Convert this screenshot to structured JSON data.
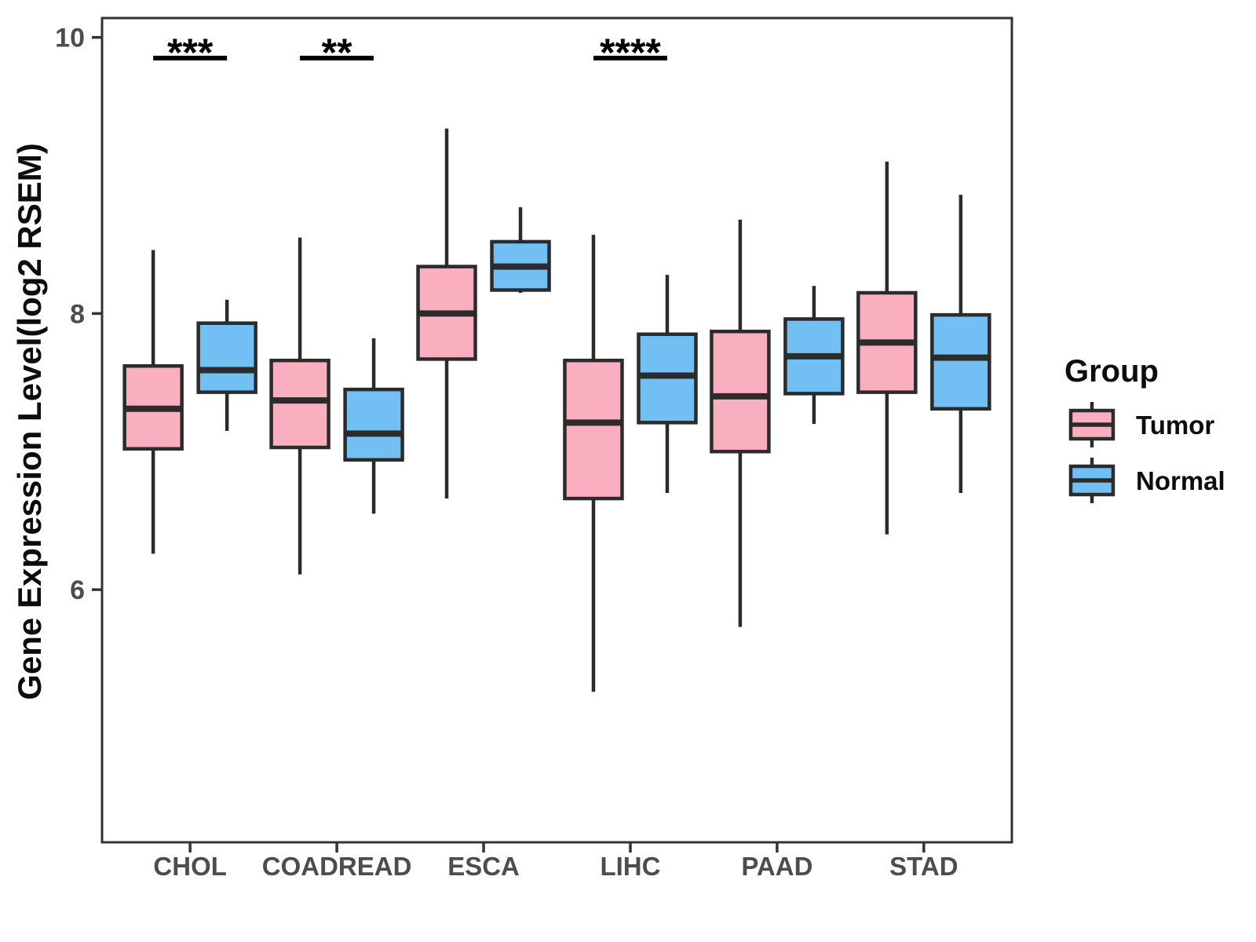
{
  "chart_data": {
    "type": "boxplot",
    "title": "",
    "xlabel": "",
    "ylabel": "Gene Expression Level(log2 RSEM)",
    "yticks": [
      6,
      8,
      10
    ],
    "ylim": [
      4.17,
      10.14
    ],
    "grid": false,
    "legend_title": "Group",
    "legend_position": "right",
    "categories": [
      "CHOL",
      "COADREAD",
      "ESCA",
      "LIHC",
      "PAAD",
      "STAD"
    ],
    "series": [
      {
        "name": "Tumor",
        "color": "#FAAFC0",
        "boxes": [
          {
            "category": "CHOL",
            "whisker_low": 6.26,
            "q1": 7.02,
            "median": 7.31,
            "q3": 7.62,
            "whisker_high": 8.46
          },
          {
            "category": "COADREAD",
            "whisker_low": 6.11,
            "q1": 7.03,
            "median": 7.37,
            "q3": 7.66,
            "whisker_high": 8.55
          },
          {
            "category": "ESCA",
            "whisker_low": 6.66,
            "q1": 7.67,
            "median": 8.0,
            "q3": 8.34,
            "whisker_high": 9.34
          },
          {
            "category": "LIHC",
            "whisker_low": 5.26,
            "q1": 6.66,
            "median": 7.21,
            "q3": 7.66,
            "whisker_high": 8.57
          },
          {
            "category": "PAAD",
            "whisker_low": 5.73,
            "q1": 7.0,
            "median": 7.4,
            "q3": 7.87,
            "whisker_high": 8.68
          },
          {
            "category": "STAD",
            "whisker_low": 6.4,
            "q1": 7.43,
            "median": 7.79,
            "q3": 8.15,
            "whisker_high": 9.1
          }
        ]
      },
      {
        "name": "Normal",
        "color": "#72BFF4",
        "boxes": [
          {
            "category": "CHOL",
            "whisker_low": 7.15,
            "q1": 7.43,
            "median": 7.59,
            "q3": 7.93,
            "whisker_high": 8.1
          },
          {
            "category": "COADREAD",
            "whisker_low": 6.55,
            "q1": 6.94,
            "median": 7.13,
            "q3": 7.45,
            "whisker_high": 7.82
          },
          {
            "category": "ESCA",
            "whisker_low": 8.15,
            "q1": 8.17,
            "median": 8.34,
            "q3": 8.52,
            "whisker_high": 8.77
          },
          {
            "category": "LIHC",
            "whisker_low": 6.7,
            "q1": 7.21,
            "median": 7.55,
            "q3": 7.85,
            "whisker_high": 8.28
          },
          {
            "category": "PAAD",
            "whisker_low": 7.2,
            "q1": 7.42,
            "median": 7.69,
            "q3": 7.96,
            "whisker_high": 8.2
          },
          {
            "category": "STAD",
            "whisker_low": 6.7,
            "q1": 7.31,
            "median": 7.68,
            "q3": 7.99,
            "whisker_high": 8.86
          }
        ]
      }
    ],
    "significance": [
      {
        "category": "CHOL",
        "label": "***"
      },
      {
        "category": "COADREAD",
        "label": "**"
      },
      {
        "category": "LIHC",
        "label": "****"
      }
    ]
  }
}
